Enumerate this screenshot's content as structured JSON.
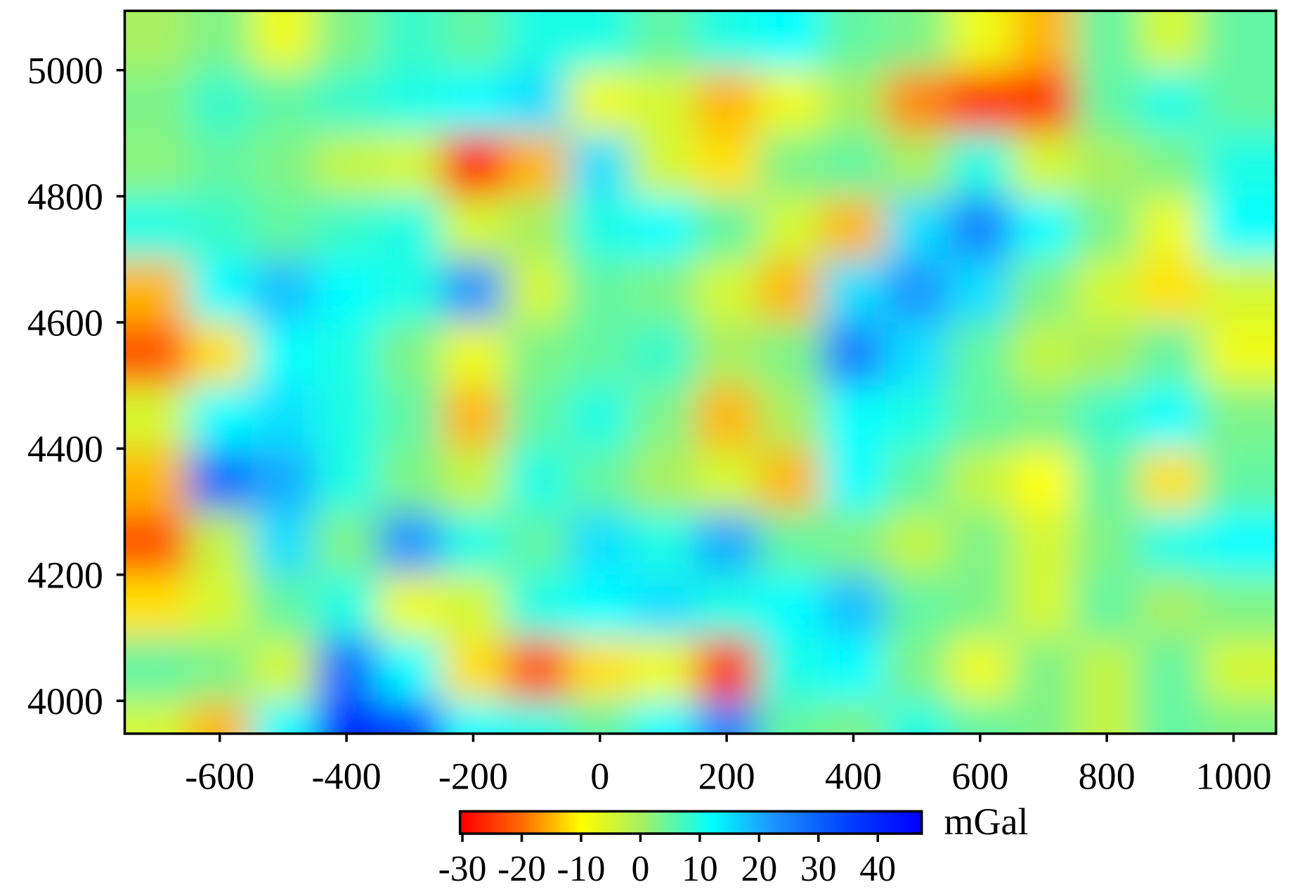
{
  "chart_data": {
    "type": "heatmap",
    "x": [
      -700,
      -600,
      -500,
      -400,
      -300,
      -200,
      -100,
      0,
      100,
      200,
      300,
      400,
      500,
      600,
      700,
      800,
      900,
      1000
    ],
    "y": [
      5050,
      4950,
      4850,
      4750,
      4650,
      4550,
      4450,
      4350,
      4250,
      4150,
      4050,
      3950
    ],
    "z": [
      [
        0,
        3,
        -8,
        3,
        8,
        5,
        10,
        10,
        5,
        10,
        12,
        5,
        3,
        -8,
        -15,
        5,
        -5,
        5
      ],
      [
        3,
        8,
        5,
        8,
        10,
        12,
        15,
        -8,
        -5,
        -15,
        -8,
        0,
        -18,
        -25,
        -25,
        5,
        10,
        5
      ],
      [
        2,
        5,
        3,
        -3,
        -5,
        -28,
        -15,
        15,
        -5,
        -12,
        3,
        5,
        0,
        10,
        -5,
        0,
        3,
        10
      ],
      [
        10,
        8,
        5,
        8,
        10,
        -5,
        0,
        10,
        12,
        5,
        -5,
        -15,
        15,
        25,
        12,
        3,
        -8,
        12
      ],
      [
        -15,
        12,
        18,
        12,
        10,
        22,
        -5,
        5,
        3,
        -5,
        -15,
        15,
        22,
        15,
        3,
        -5,
        -12,
        -5
      ],
      [
        -22,
        -12,
        12,
        10,
        3,
        -8,
        3,
        5,
        8,
        0,
        3,
        25,
        15,
        5,
        -3,
        0,
        5,
        -8
      ],
      [
        -5,
        12,
        15,
        10,
        5,
        -15,
        5,
        10,
        3,
        -15,
        0,
        12,
        10,
        5,
        3,
        8,
        12,
        3
      ],
      [
        -15,
        28,
        20,
        10,
        3,
        -3,
        10,
        5,
        0,
        -5,
        -15,
        12,
        5,
        -3,
        -10,
        5,
        -12,
        5
      ],
      [
        -22,
        -3,
        15,
        3,
        22,
        10,
        5,
        15,
        10,
        20,
        5,
        3,
        -3,
        3,
        -5,
        3,
        10,
        12
      ],
      [
        -12,
        -5,
        5,
        10,
        -8,
        -5,
        10,
        12,
        15,
        10,
        12,
        18,
        5,
        3,
        -5,
        5,
        0,
        3
      ],
      [
        5,
        3,
        -5,
        28,
        12,
        -12,
        -22,
        -12,
        -8,
        -25,
        10,
        12,
        3,
        -8,
        3,
        -3,
        5,
        -5
      ],
      [
        -5,
        -15,
        12,
        40,
        35,
        12,
        10,
        5,
        12,
        25,
        5,
        3,
        10,
        5,
        3,
        -3,
        5,
        3
      ]
    ],
    "xlim": [
      -750,
      1067
    ],
    "ylim": [
      3948,
      5094
    ],
    "xticks": [
      -600,
      -400,
      -200,
      0,
      200,
      400,
      600,
      800,
      1000
    ],
    "yticks": [
      4000,
      4200,
      4400,
      4600,
      4800,
      5000
    ],
    "clim": [
      -30.4,
      47.4
    ],
    "cticks": [
      -30,
      -20,
      -10,
      0,
      10,
      20,
      30,
      40
    ],
    "colorbar_label": "mGal",
    "colorscale": [
      [
        -30,
        "#ff0000"
      ],
      [
        -20,
        "#ff6a00"
      ],
      [
        -10,
        "#ffff00"
      ],
      [
        0,
        "#a8f060"
      ],
      [
        12,
        "#00ffff"
      ],
      [
        22,
        "#1e96ff"
      ],
      [
        35,
        "#0040ff"
      ],
      [
        47,
        "#0000ff"
      ]
    ]
  }
}
